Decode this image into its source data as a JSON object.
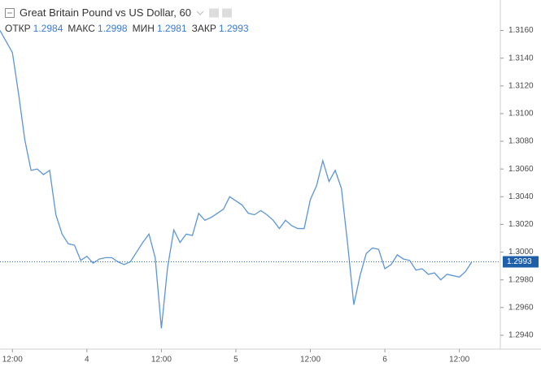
{
  "chart_data": {
    "type": "line",
    "title": "Great Britain Pound vs US Dollar, 60",
    "ohlc": [
      {
        "label": "ОТКР",
        "value": 1.2984
      },
      {
        "label": "МАКС",
        "value": 1.2998
      },
      {
        "label": "МИН",
        "value": 1.2981
      },
      {
        "label": "ЗАКР",
        "value": 1.2993
      }
    ],
    "x": [
      0,
      1,
      2,
      3,
      4,
      5,
      6,
      7,
      8,
      9,
      10,
      11,
      12,
      13,
      14,
      15,
      16,
      17,
      18,
      19,
      20,
      21,
      22,
      23,
      24,
      25,
      26,
      27,
      28,
      29,
      30,
      31,
      32,
      33,
      34,
      35,
      36,
      37,
      38,
      39,
      40,
      41,
      42,
      43,
      44,
      45,
      46,
      47,
      48,
      49,
      50,
      51,
      52,
      53,
      54,
      55,
      56,
      57,
      58,
      59,
      60,
      61,
      62,
      63,
      64,
      65,
      66,
      67,
      68,
      69,
      70,
      71,
      72,
      73,
      74,
      75,
      76
    ],
    "series": [
      {
        "color": "#5b95d6",
        "values": [
          1.316,
          1.3152,
          1.3144,
          1.3114,
          1.3081,
          1.3059,
          1.306,
          1.3056,
          1.3059,
          1.3027,
          1.3013,
          1.3006,
          1.3005,
          1.2994,
          1.2997,
          1.2992,
          1.2995,
          1.2996,
          1.2996,
          1.2993,
          1.2991,
          1.2993,
          1.3,
          1.3007,
          1.3013,
          1.2996,
          1.2945,
          1.2989,
          1.3016,
          1.3007,
          1.3013,
          1.3012,
          1.3028,
          1.3023,
          1.3025,
          1.3028,
          1.3031,
          1.304,
          1.3037,
          1.3034,
          1.3028,
          1.3027,
          1.303,
          1.3027,
          1.3023,
          1.3017,
          1.3023,
          1.3019,
          1.3017,
          1.3017,
          1.3038,
          1.3048,
          1.3066,
          1.3051,
          1.3059,
          1.3046,
          1.3006,
          1.2962,
          1.2983,
          1.2999,
          1.3003,
          1.3002,
          1.2988,
          1.2991,
          1.2998,
          1.2995,
          1.2994,
          1.2987,
          1.2988,
          1.2984,
          1.2985,
          1.298,
          1.2984,
          1.2983,
          1.2982,
          1.2986,
          1.2993
        ]
      }
    ],
    "last_price": 1.2993,
    "xlim": [
      0,
      80.6
    ],
    "xticks": [
      {
        "value": 2,
        "label": "12:00"
      },
      {
        "value": 14,
        "label": "4"
      },
      {
        "value": 26,
        "label": "12:00"
      },
      {
        "value": 38,
        "label": "5"
      },
      {
        "value": 50,
        "label": "12:00"
      },
      {
        "value": 62,
        "label": "6"
      },
      {
        "value": 74,
        "label": "12:00"
      }
    ],
    "ylim": [
      1.293,
      1.3182
    ],
    "yticks": [
      {
        "value": 1.294,
        "label": "1.2940"
      },
      {
        "value": 1.296,
        "label": "1.2960"
      },
      {
        "value": 1.298,
        "label": "1.2980"
      },
      {
        "value": 1.3,
        "label": "1.3000"
      },
      {
        "value": 1.302,
        "label": "1.3020"
      },
      {
        "value": 1.304,
        "label": "1.3040"
      },
      {
        "value": 1.306,
        "label": "1.3060"
      },
      {
        "value": 1.308,
        "label": "1.3080"
      },
      {
        "value": 1.31,
        "label": "1.3100"
      },
      {
        "value": 1.312,
        "label": "1.3120"
      },
      {
        "value": 1.314,
        "label": "1.3140"
      },
      {
        "value": 1.316,
        "label": "1.3160"
      }
    ],
    "grid": false
  }
}
